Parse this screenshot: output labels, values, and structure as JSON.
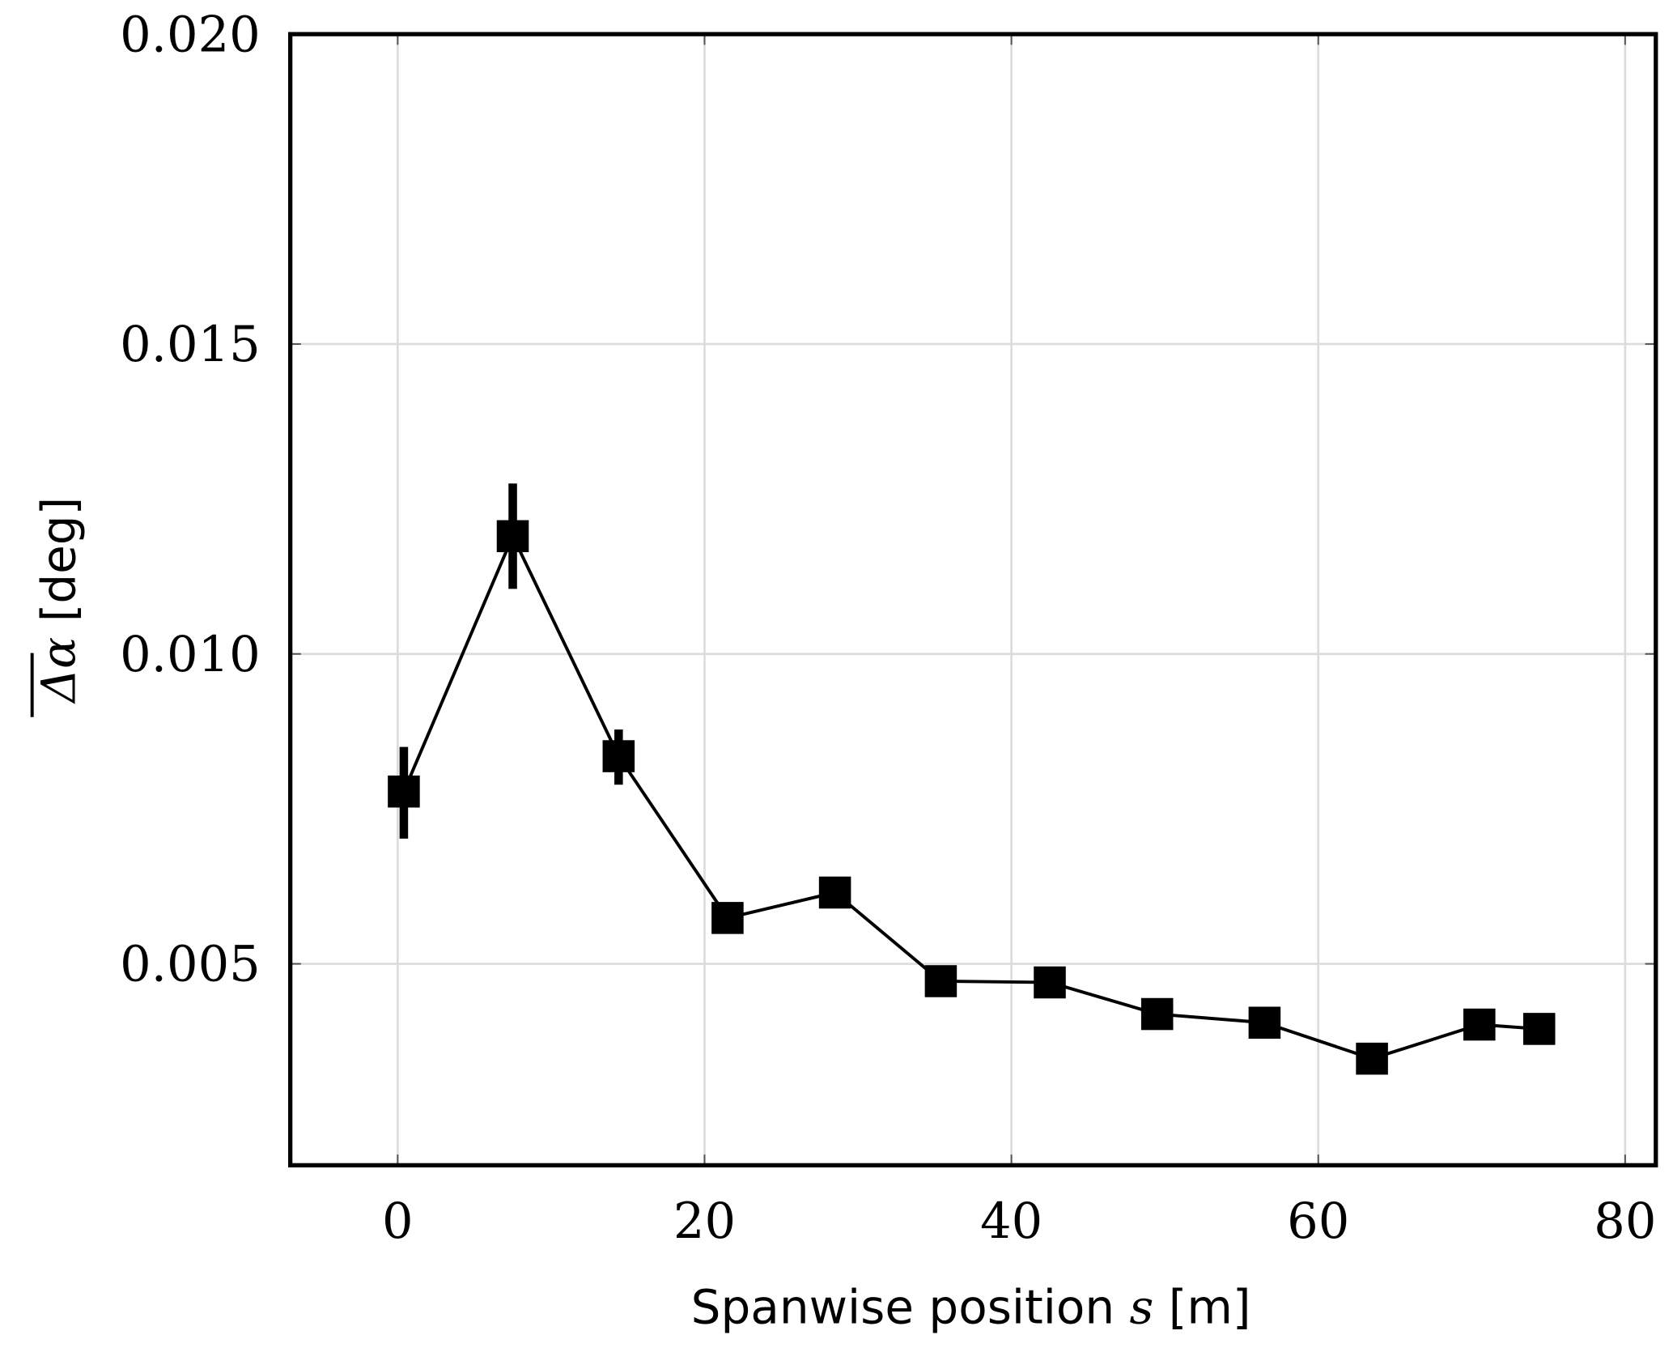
{
  "chart_data": {
    "type": "line",
    "title": "",
    "xlabel": "Spanwise position s [m]",
    "ylabel": "Δα (overbar) [deg]",
    "xlabel_parts": {
      "text": "Spanwise position ",
      "var": "s",
      "unit": " [m]"
    },
    "ylabel_parts": {
      "var": "Δα",
      "unit": " [deg]"
    },
    "xlim": [
      -7,
      82
    ],
    "ylim": [
      0.00175,
      0.02
    ],
    "xticks": [
      0,
      20,
      40,
      60,
      80
    ],
    "xtick_labels": [
      "0",
      "20",
      "40",
      "60",
      "80"
    ],
    "yticks": [
      0.005,
      0.01,
      0.015,
      0.02
    ],
    "ytick_labels": [
      "0.005",
      "0.010",
      "0.015",
      "0.020"
    ],
    "grid": true,
    "series": [
      {
        "name": "mean delta alpha",
        "marker": "square",
        "color": "#000000",
        "x": [
          0.4,
          7.5,
          14.4,
          21.5,
          28.5,
          35.4,
          42.5,
          49.5,
          56.5,
          63.5,
          70.5,
          74.4
        ],
        "y": [
          0.00778,
          0.0119,
          0.00835,
          0.00574,
          0.00615,
          0.00472,
          0.0047,
          0.00419,
          0.00405,
          0.00347,
          0.00402,
          0.00395
        ],
        "y_err_low": [
          0.00702,
          0.01105,
          0.00789,
          null,
          null,
          null,
          null,
          null,
          null,
          null,
          null,
          null
        ],
        "y_err_high": [
          0.0085,
          0.01275,
          0.00878,
          null,
          null,
          null,
          null,
          null,
          null,
          null,
          null,
          null
        ]
      }
    ]
  }
}
